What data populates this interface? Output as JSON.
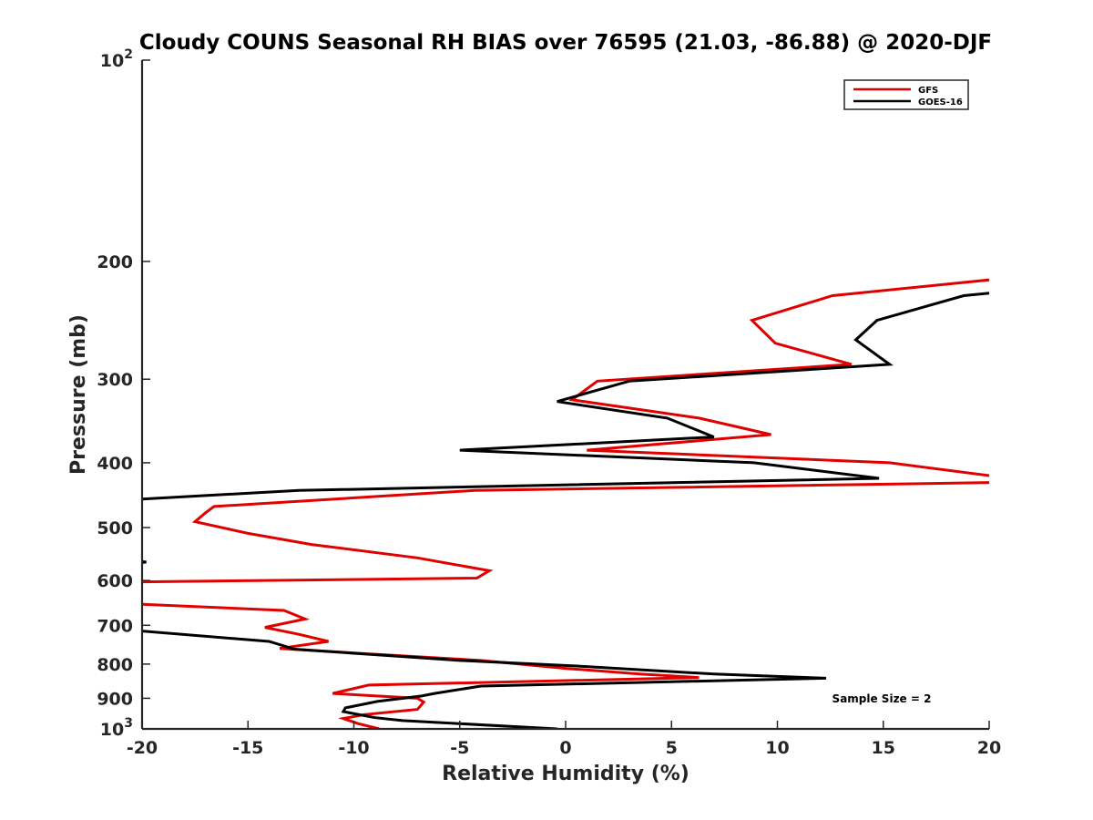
{
  "chart_data": {
    "type": "line",
    "title": "Cloudy COUNS Seasonal RH BIAS over 76595 (21.03, -86.88) @ 2020-DJF",
    "xlabel": "Relative Humidity (%)",
    "ylabel": "Pressure (mb)",
    "xlim": [
      -20,
      20
    ],
    "ylim": [
      100,
      1000
    ],
    "yscale": "log",
    "y_reversed": true,
    "x_ticks": [
      -20,
      -15,
      -10,
      -5,
      0,
      5,
      10,
      15,
      20
    ],
    "x_tick_labels": [
      "-20",
      "-15",
      "-10",
      "-5",
      "0",
      "5",
      "10",
      "15",
      "20"
    ],
    "y_ticks": [
      100,
      200,
      300,
      400,
      500,
      600,
      700,
      800,
      900,
      1000
    ],
    "y_tick_labels": [
      {
        "base": "10",
        "exp": "2"
      },
      {
        "base": "200",
        "exp": ""
      },
      {
        "base": "300",
        "exp": ""
      },
      {
        "base": "400",
        "exp": ""
      },
      {
        "base": "500",
        "exp": ""
      },
      {
        "base": "600",
        "exp": ""
      },
      {
        "base": "700",
        "exp": ""
      },
      {
        "base": "800",
        "exp": ""
      },
      {
        "base": "900",
        "exp": ""
      },
      {
        "base": "10",
        "exp": "3"
      }
    ],
    "legend_position": "top-right",
    "annotation": "Sample Size = 2",
    "series": [
      {
        "name": "GFS",
        "color": "#e00000",
        "points": [
          [
            22,
            210
          ],
          [
            12.6,
            225
          ],
          [
            8.8,
            245
          ],
          [
            9.9,
            265
          ],
          [
            13.5,
            285
          ],
          [
            1.5,
            302
          ],
          [
            0.3,
            322
          ],
          [
            6.3,
            343
          ],
          [
            9.7,
            363
          ],
          [
            1.0,
            383
          ],
          [
            15.3,
            400
          ],
          [
            20.5,
            420
          ],
          [
            20.5,
            428
          ],
          [
            -4.3,
            440
          ],
          [
            -16.6,
            465
          ],
          [
            -17.0,
            475
          ],
          [
            -17.5,
            490
          ],
          [
            -15.0,
            510
          ],
          [
            -12.0,
            530
          ],
          [
            -7.0,
            555
          ],
          [
            -3.6,
            580
          ],
          [
            -4.2,
            595
          ],
          [
            -20.5,
            603
          ],
          [
            -20.5,
            650
          ],
          [
            -13.3,
            665
          ],
          [
            -12.3,
            685
          ],
          [
            -14.2,
            705
          ],
          [
            -12.6,
            722
          ],
          [
            -11.2,
            740
          ],
          [
            -13.5,
            758
          ],
          [
            -10.0,
            770
          ],
          [
            -4.0,
            790
          ],
          [
            0.0,
            812
          ],
          [
            3.5,
            828
          ],
          [
            6.3,
            838
          ],
          [
            -9.3,
            860
          ],
          [
            -11.0,
            885
          ],
          [
            -7.0,
            900
          ],
          [
            -6.7,
            912
          ],
          [
            -7.0,
            935
          ],
          [
            -9.5,
            952
          ],
          [
            -10.5,
            965
          ],
          [
            -9.8,
            982
          ],
          [
            -8.8,
            1000
          ]
        ]
      },
      {
        "name": "GOES-16",
        "color": "#000000",
        "points": [
          [
            22,
            220
          ],
          [
            18.8,
            225
          ],
          [
            14.7,
            245
          ],
          [
            13.7,
            262
          ],
          [
            15.3,
            285
          ],
          [
            3.0,
            302
          ],
          [
            -0.4,
            324
          ],
          [
            4.8,
            343
          ],
          [
            7.0,
            366
          ],
          [
            -5.0,
            383
          ],
          [
            8.9,
            400
          ],
          [
            14.8,
            422
          ],
          [
            -12.6,
            440
          ],
          [
            -21,
            455
          ],
          [
            -21,
            558
          ],
          [
            -19.8,
            563
          ],
          [
            -21,
            568
          ],
          [
            -21,
            710
          ],
          [
            -14.0,
            740
          ],
          [
            -12.8,
            760
          ],
          [
            -5.0,
            790
          ],
          [
            0.7,
            806
          ],
          [
            7.0,
            828
          ],
          [
            12.3,
            840
          ],
          [
            -4.0,
            863
          ],
          [
            -6.2,
            885
          ],
          [
            -6.8,
            893
          ],
          [
            -8.9,
            910
          ],
          [
            -10.4,
            930
          ],
          [
            -10.5,
            942
          ],
          [
            -9.0,
            962
          ],
          [
            -7.7,
            972
          ],
          [
            -0.4,
            1000
          ]
        ]
      }
    ]
  }
}
